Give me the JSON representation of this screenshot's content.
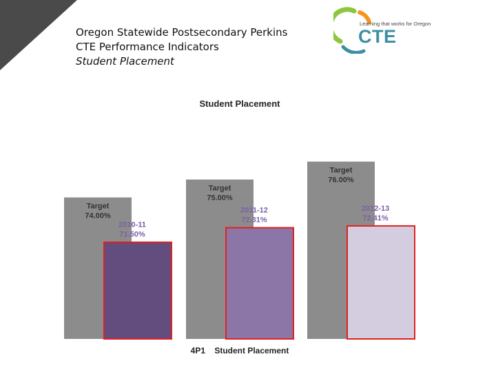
{
  "header": {
    "line1": "Oregon Statewide Postsecondary Perkins",
    "line2": "CTE Performance Indicators",
    "line3": "Student Placement"
  },
  "logo": {
    "tagline": "Learning that works for Oregon",
    "wordmark": "CTE",
    "colors": {
      "green": "#8dc63f",
      "orange": "#f7941d",
      "teal": "#3b8fa3"
    }
  },
  "chart_data": {
    "type": "bar",
    "title": "Student Placement",
    "xlabel": "4P1    Student Placement",
    "categories": [
      "2010-11",
      "2011-12",
      "2012-13"
    ],
    "series": [
      {
        "labels": [
          "Target\n74.00%",
          "Target\n75.00%",
          "Target\n76.00%"
        ],
        "values": [
          74.0,
          75.0,
          76.0
        ],
        "color": "#8c8c8c"
      },
      {
        "labels": [
          "2010-11\n71.50%",
          "2011-12\n72.31%",
          "2012-13\n72.41%"
        ],
        "values": [
          71.5,
          72.31,
          72.41
        ],
        "colors": [
          "#634d7e",
          "#8c76a8",
          "#d4cde0"
        ],
        "border": "#e02020"
      }
    ],
    "label_color_actual": "#7d5fa8",
    "label_color_target": "#333333",
    "grid": false,
    "legend": "none"
  }
}
